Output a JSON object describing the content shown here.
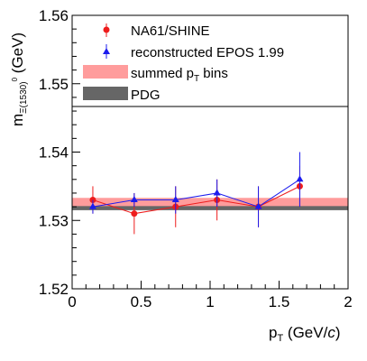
{
  "chart_data": {
    "type": "scatter",
    "title": "",
    "xlabel": "p",
    "xlabel_sub": "T",
    "xlabel_unit": " (GeV/",
    "xlabel_unit_italic": "c",
    "xlabel_close": ")",
    "ylabel": "m",
    "ylabel_sub": "Ξ(1530)",
    "ylabel_sup": "0",
    "ylabel_unit": " (GeV)",
    "xlim": [
      0,
      2
    ],
    "ylim": [
      1.52,
      1.56
    ],
    "x_ticks": [
      0,
      0.5,
      1,
      1.5,
      2
    ],
    "x_tick_labels": [
      "0",
      "0.5",
      "1",
      "1.5",
      "2"
    ],
    "y_ticks": [
      1.52,
      1.53,
      1.54,
      1.55,
      1.56
    ],
    "y_tick_labels": [
      "1.52",
      "1.53",
      "1.54",
      "1.55",
      "1.56"
    ],
    "grid": false,
    "legend_position": "top-left",
    "series": [
      {
        "name": "NA61/SHINE",
        "color": "#ee1c1c",
        "marker": "circle",
        "points": [
          {
            "x": 0.15,
            "y": 1.533,
            "err": 0.002
          },
          {
            "x": 0.45,
            "y": 1.531,
            "err": 0.003
          },
          {
            "x": 0.75,
            "y": 1.532,
            "err": 0.003
          },
          {
            "x": 1.05,
            "y": 1.533,
            "err": 0.003
          },
          {
            "x": 1.35,
            "y": 1.532,
            "err": 0.003
          },
          {
            "x": 1.65,
            "y": 1.535,
            "err": 0.003
          }
        ]
      },
      {
        "name": "reconstructed EPOS 1.99",
        "color": "#1c1cee",
        "marker": "triangle",
        "points": [
          {
            "x": 0.15,
            "y": 1.532,
            "err": 0.001
          },
          {
            "x": 0.45,
            "y": 1.533,
            "err": 0.001
          },
          {
            "x": 0.75,
            "y": 1.533,
            "err": 0.002
          },
          {
            "x": 1.05,
            "y": 1.534,
            "err": 0.002
          },
          {
            "x": 1.35,
            "y": 1.532,
            "err": 0.003
          },
          {
            "x": 1.65,
            "y": 1.536,
            "err": 0.004
          }
        ]
      }
    ],
    "bands": [
      {
        "name": "summed p",
        "name_sub": "T",
        "name_suffix": " bins",
        "color": "#ff9c9c",
        "y_low": 1.5317,
        "y_high": 1.5333
      },
      {
        "name": "PDG",
        "color": "#666666",
        "y_low": 1.5315,
        "y_high": 1.5321
      }
    ]
  }
}
